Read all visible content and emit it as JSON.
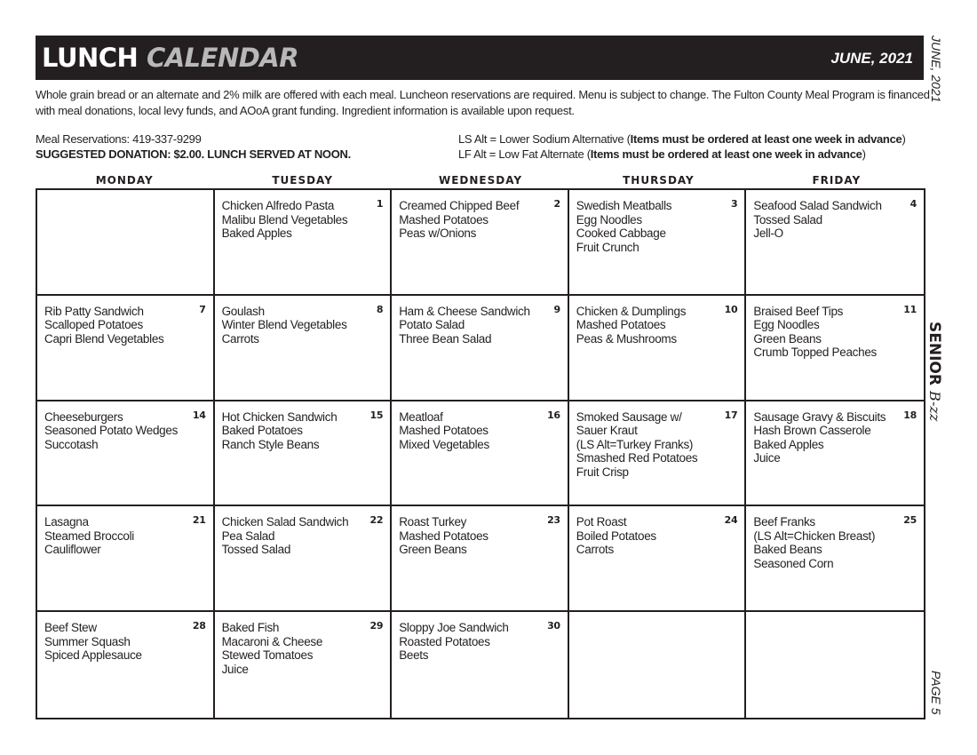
{
  "header": {
    "title_bold": "LUNCH",
    "title_light": "CALENDAR",
    "month": "JUNE, 2021"
  },
  "intro": "Whole grain bread or an alternate and 2% milk are offered with each meal. Luncheon reservations are required. Menu is subject to change. The Fulton County Meal Program is financed with meal donations, local levy funds, and AOoA grant funding. Ingredient information is available upon request.",
  "reservations": "Meal Reservations: 419-337-9299",
  "donation": "SUGGESTED DONATION: $2.00. LUNCH SERVED AT NOON.",
  "alts": [
    {
      "text": "LS Alt = Lower Sodium Alternative (",
      "bold": "Items must be ordered at least one week in advance",
      "end": ")"
    },
    {
      "text": "LF Alt = Low Fat Alternate (",
      "bold": "Items must be ordered at least one week in advance",
      "end": ")"
    }
  ],
  "days": [
    "MONDAY",
    "TUESDAY",
    "WEDNESDAY",
    "THURSDAY",
    "FRIDAY"
  ],
  "cells": [
    {
      "num": "",
      "items": []
    },
    {
      "num": "1",
      "items": [
        "Chicken Alfredo Pasta",
        "Malibu Blend Vegetables",
        "Baked Apples"
      ]
    },
    {
      "num": "2",
      "items": [
        "Creamed Chipped Beef",
        "Mashed Potatoes",
        "Peas w/Onions"
      ]
    },
    {
      "num": "3",
      "items": [
        "Swedish Meatballs",
        "Egg Noodles",
        "Cooked Cabbage",
        "Fruit Crunch"
      ]
    },
    {
      "num": "4",
      "items": [
        "Seafood Salad Sandwich",
        "Tossed Salad",
        "Jell-O"
      ]
    },
    {
      "num": "7",
      "items": [
        "Rib Patty Sandwich",
        "Scalloped Potatoes",
        "Capri Blend Vegetables"
      ]
    },
    {
      "num": "8",
      "items": [
        "Goulash",
        "Winter Blend Vegetables",
        "Carrots"
      ]
    },
    {
      "num": "9",
      "items": [
        "Ham & Cheese Sandwich",
        "Potato Salad",
        "Three Bean Salad"
      ]
    },
    {
      "num": "10",
      "items": [
        "Chicken & Dumplings",
        "Mashed Potatoes",
        "Peas & Mushrooms"
      ]
    },
    {
      "num": "11",
      "items": [
        "Braised Beef Tips",
        "Egg Noodles",
        "Green Beans",
        "Crumb Topped Peaches"
      ]
    },
    {
      "num": "14",
      "items": [
        "Cheeseburgers",
        "Seasoned Potato Wedges",
        "Succotash"
      ]
    },
    {
      "num": "15",
      "items": [
        "Hot Chicken Sandwich",
        "Baked Potatoes",
        "Ranch Style Beans"
      ]
    },
    {
      "num": "16",
      "items": [
        "Meatloaf",
        "Mashed Potatoes",
        "Mixed Vegetables"
      ]
    },
    {
      "num": "17",
      "items": [
        "Smoked Sausage w/",
        "Sauer Kraut",
        "(LS Alt=Turkey Franks)",
        "Smashed Red Potatoes",
        "Fruit Crisp"
      ]
    },
    {
      "num": "18",
      "items": [
        "Sausage Gravy & Biscuits",
        "Hash Brown Casserole",
        "Baked Apples",
        "Juice"
      ]
    },
    {
      "num": "21",
      "items": [
        "Lasagna",
        "Steamed Broccoli",
        "Cauliflower"
      ]
    },
    {
      "num": "22",
      "items": [
        "Chicken Salad Sandwich",
        "Pea Salad",
        "Tossed Salad"
      ]
    },
    {
      "num": "23",
      "items": [
        "Roast Turkey",
        "Mashed Potatoes",
        "Green Beans"
      ]
    },
    {
      "num": "24",
      "items": [
        "Pot Roast",
        "Boiled Potatoes",
        "Carrots"
      ]
    },
    {
      "num": "25",
      "items": [
        "Beef Franks",
        "(LS Alt=Chicken Breast)",
        "Baked Beans",
        "Seasoned Corn"
      ]
    },
    {
      "num": "28",
      "items": [
        "Beef Stew",
        "Summer Squash",
        "Spiced Applesauce"
      ]
    },
    {
      "num": "29",
      "items": [
        "Baked Fish",
        "Macaroni & Cheese",
        "Stewed Tomatoes",
        "Juice"
      ]
    },
    {
      "num": "30",
      "items": [
        "Sloppy Joe Sandwich",
        "Roasted Potatoes",
        "Beets"
      ]
    },
    {
      "num": "",
      "items": []
    },
    {
      "num": "",
      "items": []
    }
  ],
  "side": {
    "date": "JUNE, 2021",
    "brand_bold": "SENIOR",
    "brand_script": "B-zz",
    "page": "PAGE 5"
  }
}
